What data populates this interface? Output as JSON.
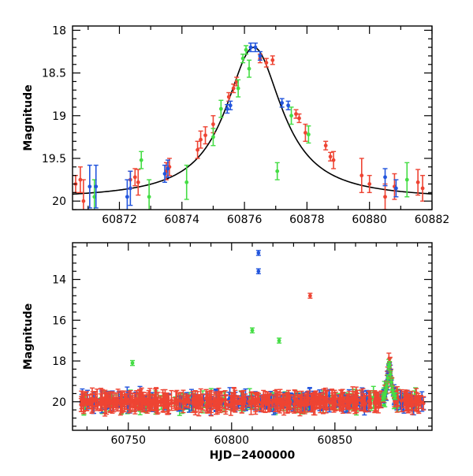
{
  "colors": {
    "red": "#ee4433",
    "green": "#44dd44",
    "blue": "#2255dd",
    "model": "#000000"
  },
  "chart_data": [
    {
      "type": "scatter",
      "title": "",
      "xlabel": "",
      "ylabel": "Magnitude",
      "xlim": [
        60870.5,
        60882
      ],
      "ylim": [
        20.1,
        17.95
      ],
      "inverted_y": true,
      "grid": false,
      "xticks": [
        60872,
        60874,
        60876,
        60878,
        60880,
        60882
      ],
      "xtick_labels": [
        "60872",
        "60874",
        "60876",
        "60878",
        "60880",
        "60882"
      ],
      "yticks": [
        18,
        18.5,
        19,
        19.5,
        20
      ],
      "ytick_labels": [
        "18",
        "18.5",
        "19",
        "19.5",
        "20"
      ],
      "model_curve": {
        "type": "line",
        "peak_x": 60876.3,
        "peak_mag": 18.2,
        "baseline_mag": 19.98,
        "width_days": 1.1
      },
      "series": [
        {
          "color": "red",
          "points": [
            [
              60870.6,
              19.8,
              0.1
            ],
            [
              60870.75,
              19.75,
              0.15
            ],
            [
              60870.85,
              20.0,
              0.25
            ],
            [
              60872.35,
              19.75,
              0.1
            ],
            [
              60872.5,
              19.72,
              0.1
            ],
            [
              60872.6,
              19.78,
              0.15
            ],
            [
              60873.5,
              19.65,
              0.1
            ],
            [
              60873.6,
              19.6,
              0.1
            ],
            [
              60874.5,
              19.4,
              0.1
            ],
            [
              60874.6,
              19.28,
              0.1
            ],
            [
              60874.75,
              19.23,
              0.1
            ],
            [
              60875.0,
              19.1,
              0.1
            ],
            [
              60875.5,
              18.78,
              0.05
            ],
            [
              60875.65,
              18.68,
              0.05
            ],
            [
              60875.75,
              18.6,
              0.05
            ],
            [
              60876.5,
              18.33,
              0.05
            ],
            [
              60876.7,
              18.38,
              0.05
            ],
            [
              60876.9,
              18.35,
              0.05
            ],
            [
              60877.65,
              18.98,
              0.05
            ],
            [
              60877.75,
              19.03,
              0.05
            ],
            [
              60877.95,
              19.2,
              0.1
            ],
            [
              60878.6,
              19.35,
              0.05
            ],
            [
              60878.75,
              19.48,
              0.05
            ],
            [
              60878.85,
              19.52,
              0.1
            ],
            [
              60879.75,
              19.7,
              0.2
            ],
            [
              60880.0,
              19.8,
              0.1
            ],
            [
              60880.5,
              19.95,
              0.15
            ],
            [
              60880.8,
              19.83,
              0.15
            ],
            [
              60881.55,
              19.78,
              0.15
            ],
            [
              60881.7,
              19.85,
              0.15
            ]
          ]
        },
        {
          "color": "green",
          "points": [
            [
              60871.2,
              19.95,
              0.2
            ],
            [
              60872.7,
              19.52,
              0.1
            ],
            [
              60872.95,
              19.95,
              0.2
            ],
            [
              60874.15,
              19.78,
              0.2
            ],
            [
              60875.0,
              19.25,
              0.1
            ],
            [
              60875.25,
              18.92,
              0.1
            ],
            [
              60875.8,
              18.68,
              0.1
            ],
            [
              60875.95,
              18.33,
              0.05
            ],
            [
              60876.05,
              18.23,
              0.05
            ],
            [
              60876.15,
              18.45,
              0.1
            ],
            [
              60877.05,
              19.65,
              0.1
            ],
            [
              60877.5,
              19.0,
              0.1
            ],
            [
              60878.05,
              19.22,
              0.1
            ],
            [
              60881.2,
              19.75,
              0.2
            ]
          ]
        },
        {
          "color": "blue",
          "points": [
            [
              60871.05,
              19.83,
              0.25
            ],
            [
              60871.25,
              19.83,
              0.25
            ],
            [
              60872.25,
              19.95,
              0.2
            ],
            [
              60872.35,
              19.85,
              0.2
            ],
            [
              60873.45,
              19.68,
              0.1
            ],
            [
              60873.55,
              19.62,
              0.1
            ],
            [
              60875.45,
              18.92,
              0.05
            ],
            [
              60875.55,
              18.88,
              0.05
            ],
            [
              60876.2,
              18.2,
              0.05
            ],
            [
              60876.35,
              18.2,
              0.05
            ],
            [
              60876.5,
              18.3,
              0.05
            ],
            [
              60877.2,
              18.85,
              0.05
            ],
            [
              60877.4,
              18.88,
              0.05
            ],
            [
              60880.5,
              19.72,
              0.1
            ],
            [
              60880.85,
              19.85,
              0.1
            ]
          ]
        }
      ]
    },
    {
      "type": "scatter",
      "title": "",
      "xlabel": "HJD−2400000",
      "ylabel": "Magnitude",
      "xlim": [
        60723,
        60897
      ],
      "ylim": [
        21.4,
        12.2
      ],
      "inverted_y": true,
      "grid": false,
      "xticks": [
        60750,
        60800,
        60850
      ],
      "xtick_labels": [
        "60750",
        "60800",
        "60850"
      ],
      "yticks": [
        14,
        16,
        18,
        20
      ],
      "ytick_labels": [
        "14",
        "16",
        "18",
        "20"
      ],
      "outliers": [
        {
          "color": "blue",
          "x": 60813,
          "y": 12.7
        },
        {
          "color": "blue",
          "x": 60813,
          "y": 13.6
        },
        {
          "color": "red",
          "x": 60838,
          "y": 14.8
        },
        {
          "color": "green",
          "x": 60810,
          "y": 16.5
        },
        {
          "color": "green",
          "x": 60823,
          "y": 17.0
        },
        {
          "color": "green",
          "x": 60752,
          "y": 18.1
        }
      ],
      "baseline_mag": 20.0,
      "flare": {
        "peak_x": 60876.3,
        "peak_mag": 18.2,
        "baseline_mag": 20.0,
        "width_days": 1.1
      },
      "x_range_dense": [
        60727,
        60893
      ]
    }
  ]
}
